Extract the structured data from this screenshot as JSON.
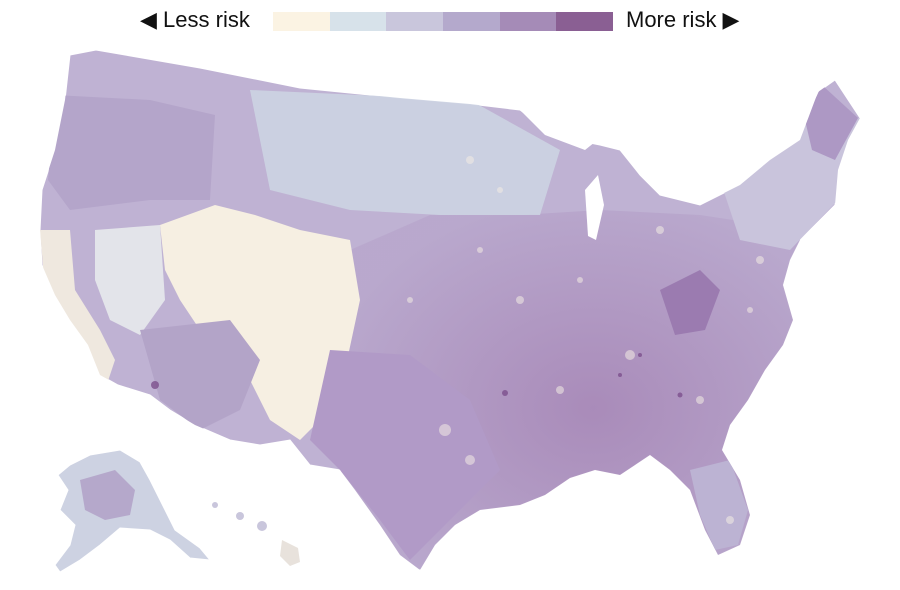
{
  "legend": {
    "less_label": "◀ Less risk",
    "more_label": "More risk ▶",
    "colors": [
      "#fbf3e3",
      "#d7e2ea",
      "#c9c6dc",
      "#b4a9cc",
      "#a58bb7",
      "#8a5f93"
    ]
  },
  "map": {
    "subject": "United States counties choropleth shaded by risk level",
    "regions": [
      "Contiguous United States",
      "Alaska",
      "Hawaii"
    ]
  }
}
